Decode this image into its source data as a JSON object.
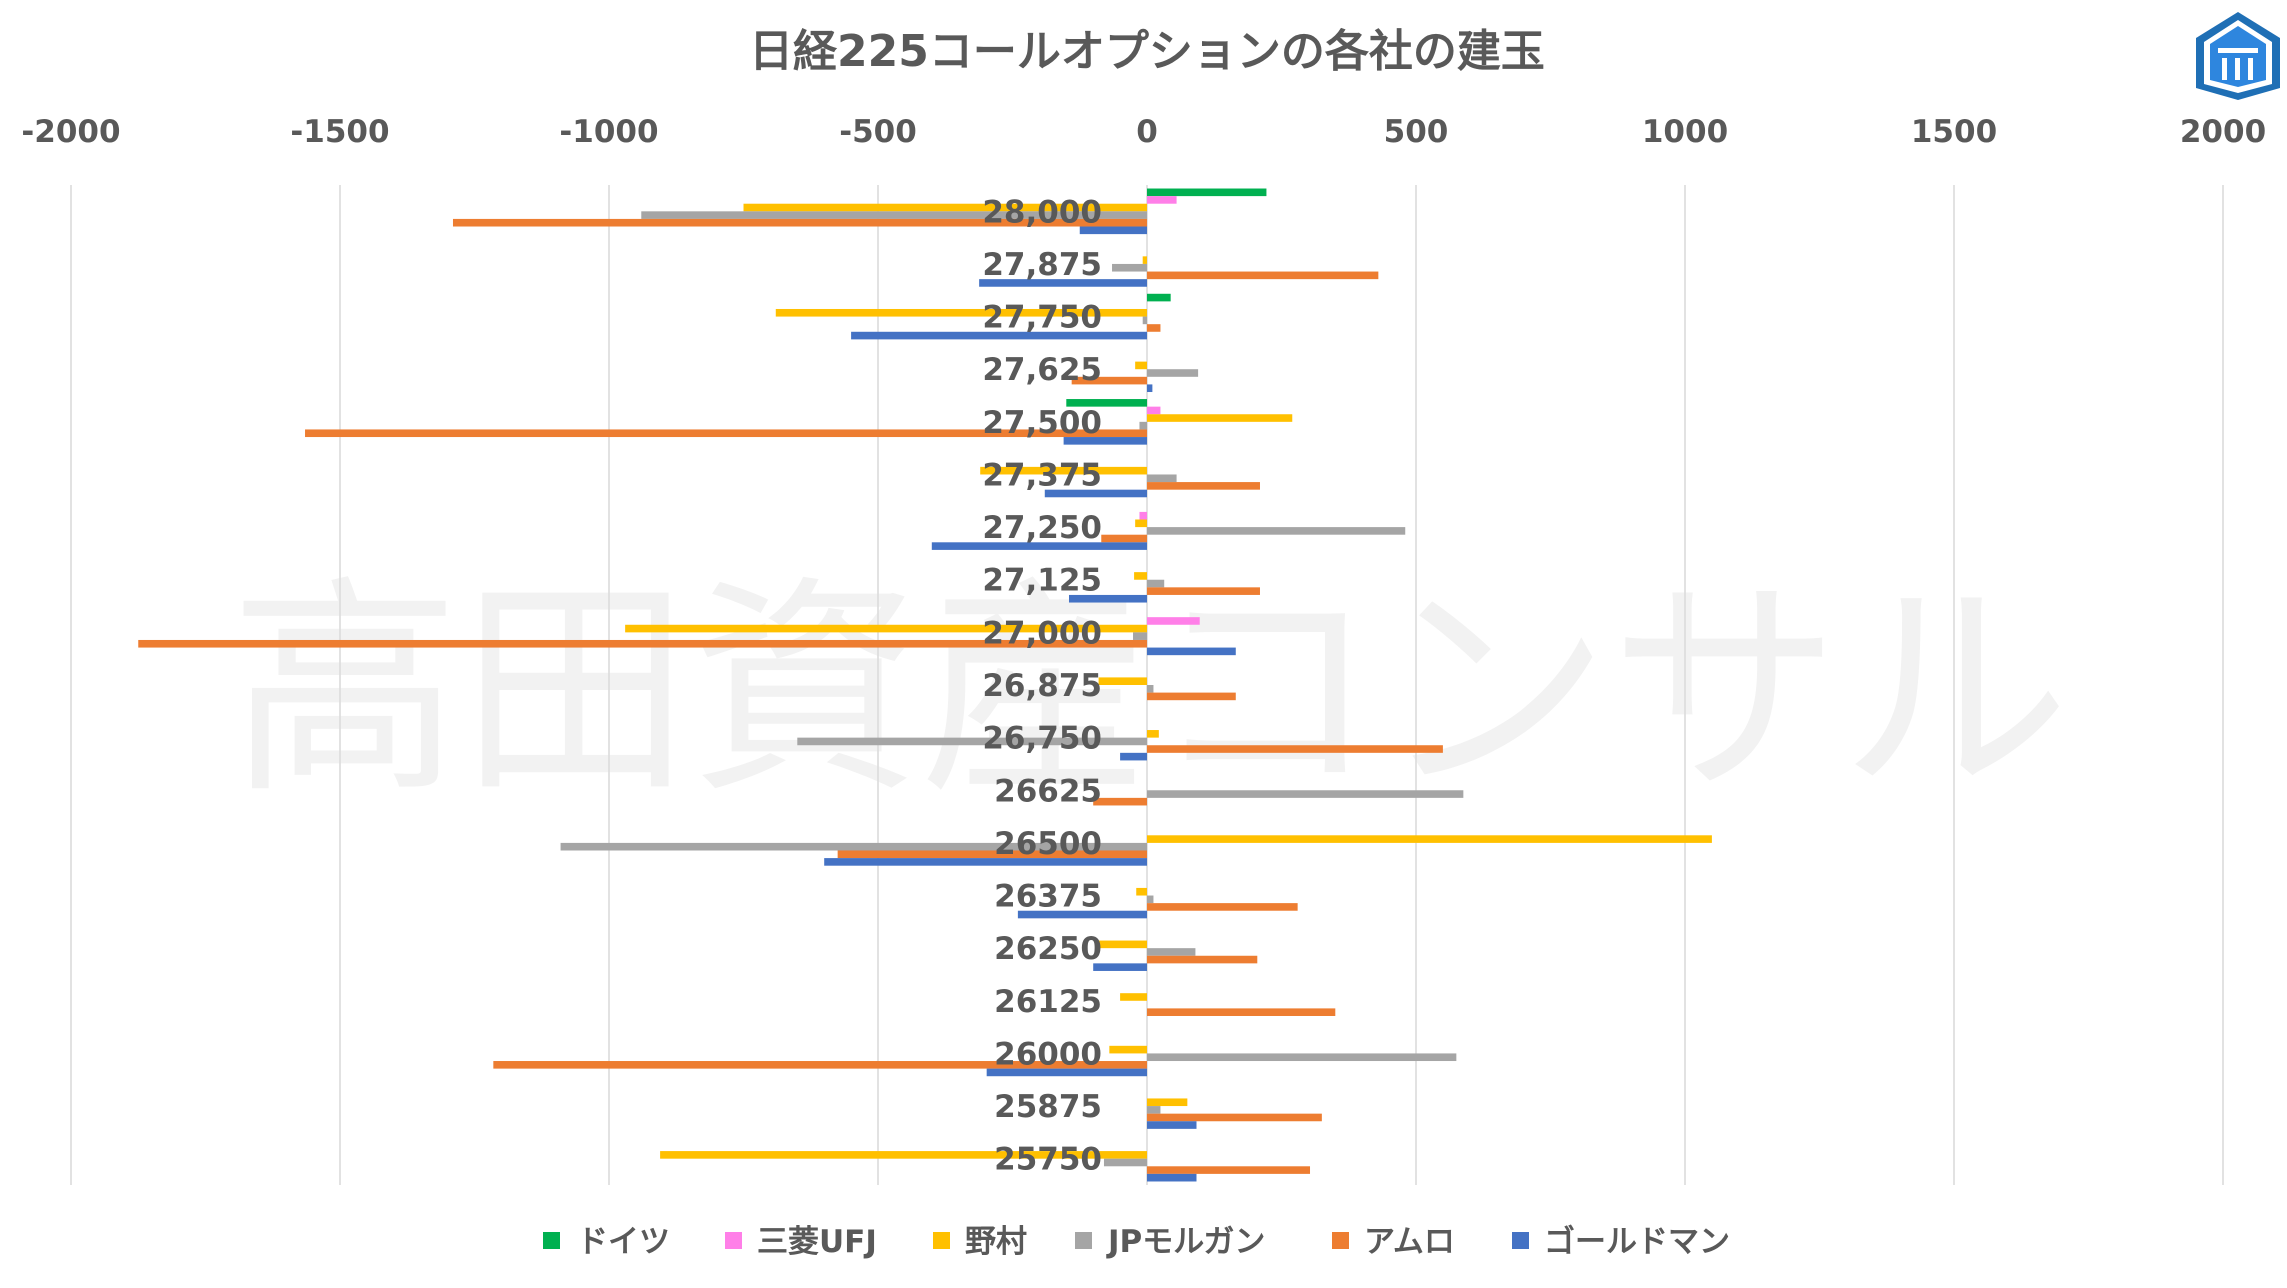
{
  "chart_data": {
    "type": "bar",
    "orientation": "horizontal",
    "title": "日経225コールオプションの各社の建玉",
    "watermark": "高田資産コンサル",
    "logo": "takata-logo-icon",
    "xlim": [
      -2000,
      2000
    ],
    "xticks": [
      "-2000",
      "-1500",
      "-1000",
      "-500",
      "0",
      "500",
      "1000",
      "1500",
      "2000"
    ],
    "grid": true,
    "legend_position": "bottom",
    "categories": [
      "28,000",
      "27,875",
      "27,750",
      "27,625",
      "27,500",
      "27,375",
      "27,250",
      "27,125",
      "27,000",
      "26,875",
      "26,750",
      "26625",
      "26500",
      "26375",
      "26250",
      "26125",
      "26000",
      "25875",
      "25750"
    ],
    "series": [
      {
        "name": "ドイツ",
        "color": "#00b050",
        "values": [
          222,
          0,
          44,
          0,
          -150,
          0,
          0,
          0,
          0,
          0,
          0,
          0,
          0,
          0,
          0,
          0,
          0,
          0,
          0
        ]
      },
      {
        "name": "三菱UFJ",
        "color": "#ff7fe8",
        "values": [
          55,
          0,
          0,
          0,
          25,
          0,
          -14,
          0,
          98,
          0,
          0,
          0,
          0,
          0,
          0,
          0,
          0,
          0,
          0
        ]
      },
      {
        "name": "野村",
        "color": "#ffc000",
        "values": [
          -750,
          -8,
          -690,
          -22,
          270,
          -310,
          -22,
          -24,
          -970,
          -90,
          22,
          0,
          1050,
          -20,
          -96,
          -50,
          -70,
          75,
          -905
        ]
      },
      {
        "name": "JPモルガン",
        "color": "#a5a5a5",
        "values": [
          -940,
          -65,
          -8,
          95,
          -14,
          55,
          480,
          32,
          -26,
          12,
          -650,
          588,
          -1090,
          12,
          90,
          0,
          575,
          25,
          -80
        ]
      },
      {
        "name": "アムロ",
        "color": "#ed7d31",
        "values": [
          -1290,
          430,
          25,
          -140,
          -1565,
          210,
          -85,
          210,
          -1875,
          165,
          550,
          -100,
          -575,
          280,
          205,
          350,
          -1215,
          325,
          303
        ]
      },
      {
        "name": "ゴールドマン",
        "color": "#4472c4",
        "values": [
          -125,
          -312,
          -550,
          10,
          -155,
          -190,
          -400,
          -145,
          165,
          0,
          -50,
          0,
          -600,
          -240,
          -100,
          0,
          -298,
          92,
          92
        ]
      }
    ]
  }
}
